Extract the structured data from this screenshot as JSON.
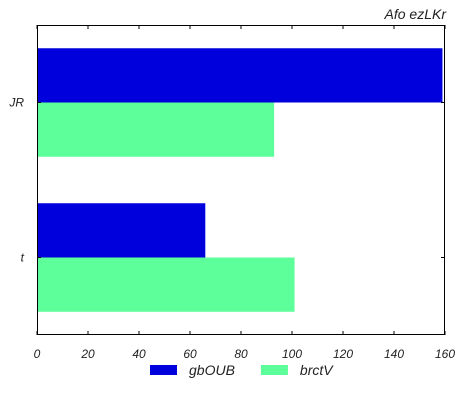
{
  "chart_data": {
    "type": "bar",
    "orientation": "horizontal",
    "title": "Afo ezLKr",
    "xlabel": "",
    "ylabel": "",
    "categories": [
      "JR",
      "t"
    ],
    "series": [
      {
        "name": "gbOUB",
        "color": "#0000dd",
        "values": [
          159,
          66
        ]
      },
      {
        "name": "brctV",
        "color": "#5cff99",
        "values": [
          93,
          101
        ]
      }
    ],
    "xlim": [
      0,
      160
    ],
    "xticks": [
      0,
      20,
      40,
      60,
      80,
      100,
      120,
      140,
      160
    ],
    "grid": false,
    "legend_position": "bottom-center"
  }
}
